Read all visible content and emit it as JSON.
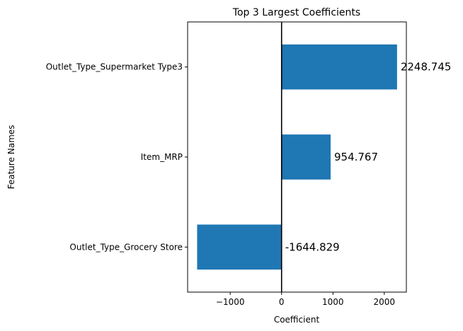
{
  "chart_data": {
    "type": "bar",
    "orientation": "horizontal",
    "title": "Top 3 Largest Coefficients",
    "xlabel": "Coefficient",
    "ylabel": "Feature Names",
    "categories": [
      "Outlet_Type_Supermarket Type3",
      "Item_MRP",
      "Outlet_Type_Grocery Store"
    ],
    "values": [
      2248.745,
      954.767,
      -1644.829
    ],
    "data_labels": [
      "2248.745",
      "954.767",
      "-1644.829"
    ],
    "xlim": [
      -1830,
      2430
    ],
    "xticks": [
      -1000,
      0,
      1000,
      2000
    ],
    "xtick_labels": [
      "−1000",
      "0",
      "1000",
      "2000"
    ],
    "zero_line": true,
    "grid": false,
    "bar_color": "#1f77b4"
  }
}
